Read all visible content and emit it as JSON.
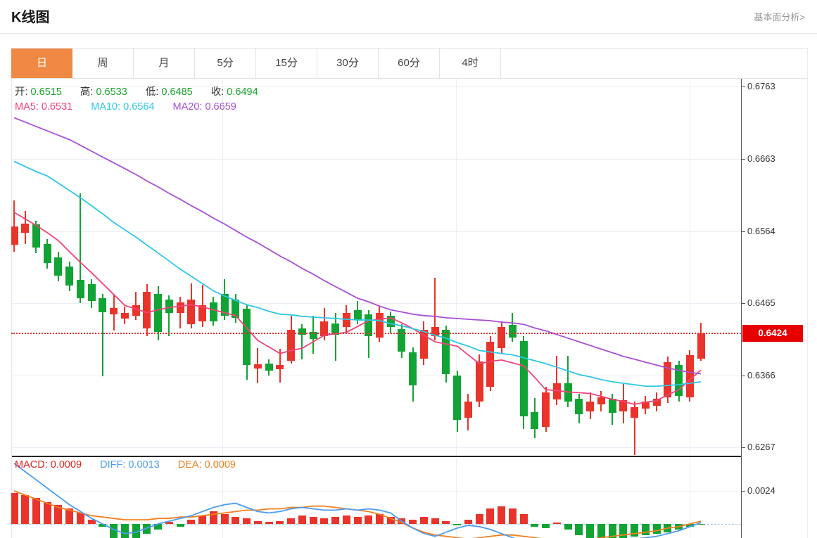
{
  "header": {
    "title": "K线图",
    "link_label": "基本面分析>"
  },
  "tabs": {
    "items": [
      "日",
      "周",
      "月",
      "5分",
      "15分",
      "30分",
      "60分",
      "4时"
    ],
    "active_index": 0
  },
  "legend": {
    "kline": {
      "o_label": "开:",
      "o": "0.6515",
      "h_label": "高:",
      "h": "0.6533",
      "l_label": "低:",
      "l": "0.6485",
      "c_label": "收:",
      "c": "0.6494"
    },
    "ma": {
      "ma5_label": "MA5:",
      "ma5": "0.6531",
      "ma10_label": "MA10:",
      "ma10": "0.6564",
      "ma20_label": "MA20:",
      "ma20": "0.6659"
    },
    "macd": {
      "macd_label": "MACD:",
      "macd": "0.0009",
      "diff_label": "DIFF:",
      "diff": "0.0013",
      "dea_label": "DEA:",
      "dea": "0.0009"
    }
  },
  "price_axis": {
    "ticks": [
      "0.6763",
      "0.6663",
      "0.6564",
      "0.6465",
      "0.6366",
      "0.6267"
    ],
    "current_price": "0.6424"
  },
  "macd_axis": {
    "ticks": [
      "0.0024"
    ]
  },
  "colors": {
    "up": "#e8342a",
    "down": "#12a335",
    "ma5": "#f0437c",
    "ma10": "#2dc7e6",
    "ma20": "#a94fd6",
    "diff": "#4a9cf0",
    "dea": "#f07f1e",
    "ohlc_value": "#18a22c",
    "alert_red": "#e60000",
    "active_tab": "#f08943",
    "macd_legend": "#e62222"
  },
  "chart_data": [
    {
      "type": "candlestick",
      "title": "K线图",
      "ylim": [
        0.62554,
        0.67736
      ],
      "yticks": [
        0.6763,
        0.6663,
        0.6564,
        0.6465,
        0.6366,
        0.6267
      ],
      "current_price": 0.6424,
      "ohlc_legend": {
        "open": 0.6515,
        "high": 0.6533,
        "low": 0.6485,
        "close": 0.6494
      },
      "ma_legend": {
        "ma5": 0.6531,
        "ma10": 0.6564,
        "ma20": 0.6659
      },
      "candles": [
        [
          0.6545,
          0.6571,
          0.6536,
          0.6606
        ],
        [
          0.6562,
          0.6574,
          0.6546,
          0.6592
        ],
        [
          0.6573,
          0.6542,
          0.6534,
          0.6578
        ],
        [
          0.6546,
          0.652,
          0.6513,
          0.6553
        ],
        [
          0.6528,
          0.6503,
          0.6495,
          0.6536
        ],
        [
          0.6515,
          0.6489,
          0.6482,
          0.6522
        ],
        [
          0.6497,
          0.6472,
          0.6465,
          0.6616
        ],
        [
          0.6491,
          0.6468,
          0.6458,
          0.6498
        ],
        [
          0.6472,
          0.6453,
          0.6365,
          0.6478
        ],
        [
          0.645,
          0.6458,
          0.6427,
          0.6476
        ],
        [
          0.6444,
          0.6452,
          0.6436,
          0.646
        ],
        [
          0.6448,
          0.6462,
          0.6442,
          0.6481
        ],
        [
          0.643,
          0.6481,
          0.642,
          0.6491
        ],
        [
          0.6478,
          0.6426,
          0.6414,
          0.6488
        ],
        [
          0.647,
          0.6452,
          0.642,
          0.6476
        ],
        [
          0.6452,
          0.6466,
          0.643,
          0.6474
        ],
        [
          0.6436,
          0.647,
          0.643,
          0.6492
        ],
        [
          0.644,
          0.6462,
          0.6432,
          0.649
        ],
        [
          0.6466,
          0.644,
          0.6434,
          0.6474
        ],
        [
          0.6478,
          0.6448,
          0.6442,
          0.6498
        ],
        [
          0.647,
          0.6445,
          0.6438,
          0.6478
        ],
        [
          0.6457,
          0.638,
          0.636,
          0.6462
        ],
        [
          0.6375,
          0.6381,
          0.6355,
          0.6403
        ],
        [
          0.6382,
          0.6372,
          0.6366,
          0.6388
        ],
        [
          0.6374,
          0.638,
          0.6356,
          0.6402
        ],
        [
          0.6386,
          0.6428,
          0.6382,
          0.6448
        ],
        [
          0.643,
          0.6422,
          0.6388,
          0.6436
        ],
        [
          0.6426,
          0.6416,
          0.6396,
          0.6448
        ],
        [
          0.642,
          0.644,
          0.6414,
          0.6458
        ],
        [
          0.6437,
          0.6422,
          0.6386,
          0.6452
        ],
        [
          0.6432,
          0.6452,
          0.6426,
          0.6462
        ],
        [
          0.6456,
          0.6442,
          0.6436,
          0.6468
        ],
        [
          0.645,
          0.642,
          0.639,
          0.6456
        ],
        [
          0.6418,
          0.6452,
          0.6412,
          0.646
        ],
        [
          0.6448,
          0.6432,
          0.6424,
          0.6454
        ],
        [
          0.6429,
          0.6398,
          0.639,
          0.6436
        ],
        [
          0.6398,
          0.6352,
          0.633,
          0.6404
        ],
        [
          0.6389,
          0.6428,
          0.638,
          0.644
        ],
        [
          0.642,
          0.6432,
          0.6414,
          0.65
        ],
        [
          0.6428,
          0.6368,
          0.6356,
          0.6434
        ],
        [
          0.6366,
          0.6305,
          0.6288,
          0.6372
        ],
        [
          0.6308,
          0.633,
          0.629,
          0.634
        ],
        [
          0.633,
          0.6385,
          0.6322,
          0.6395
        ],
        [
          0.635,
          0.6412,
          0.6344,
          0.642
        ],
        [
          0.6403,
          0.6432,
          0.6396,
          0.644
        ],
        [
          0.6435,
          0.6418,
          0.6412,
          0.6452
        ],
        [
          0.6413,
          0.631,
          0.6292,
          0.642
        ],
        [
          0.6315,
          0.6292,
          0.628,
          0.6335
        ],
        [
          0.6295,
          0.6342,
          0.6288,
          0.635
        ],
        [
          0.6333,
          0.6355,
          0.6325,
          0.6393
        ],
        [
          0.6355,
          0.633,
          0.6322,
          0.6393
        ],
        [
          0.6334,
          0.6312,
          0.63,
          0.634
        ],
        [
          0.6316,
          0.633,
          0.6306,
          0.6342
        ],
        [
          0.6326,
          0.6336,
          0.6316,
          0.6344
        ],
        [
          0.6334,
          0.6314,
          0.6298,
          0.634
        ],
        [
          0.6316,
          0.6332,
          0.63,
          0.6354
        ],
        [
          0.6308,
          0.6322,
          0.6256,
          0.633
        ],
        [
          0.632,
          0.633,
          0.6312,
          0.6338
        ],
        [
          0.6324,
          0.6334,
          0.6316,
          0.6342
        ],
        [
          0.6336,
          0.6384,
          0.6328,
          0.6392
        ],
        [
          0.638,
          0.6338,
          0.633,
          0.6386
        ],
        [
          0.6336,
          0.6394,
          0.633,
          0.64
        ],
        [
          0.6389,
          0.6424,
          0.6386,
          0.6438
        ]
      ],
      "ma5": [
        0.659,
        0.6581,
        0.6572,
        0.6562,
        0.6551,
        0.6536,
        0.6521,
        0.6507,
        0.6492,
        0.6477,
        0.6462,
        0.6457,
        0.6452,
        0.6456,
        0.6459,
        0.6461,
        0.6463,
        0.646,
        0.6456,
        0.6452,
        0.6448,
        0.6431,
        0.6414,
        0.6405,
        0.6396,
        0.64,
        0.6403,
        0.6412,
        0.6421,
        0.6423,
        0.6425,
        0.6433,
        0.6441,
        0.6443,
        0.6445,
        0.6438,
        0.643,
        0.6421,
        0.6412,
        0.6409,
        0.6406,
        0.6394,
        0.6382,
        0.6385,
        0.6387,
        0.6383,
        0.6379,
        0.6363,
        0.6346,
        0.6345,
        0.6343,
        0.6342,
        0.6341,
        0.6337,
        0.6333,
        0.633,
        0.6326,
        0.6329,
        0.6331,
        0.6339,
        0.6346,
        0.636,
        0.6373
      ],
      "ma10": [
        0.666,
        0.6653,
        0.6646,
        0.664,
        0.663,
        0.662,
        0.661,
        0.6599,
        0.6588,
        0.6576,
        0.6566,
        0.6556,
        0.6545,
        0.6534,
        0.6523,
        0.6512,
        0.6502,
        0.6492,
        0.6482,
        0.6475,
        0.6469,
        0.6463,
        0.6459,
        0.6454,
        0.645,
        0.6449,
        0.6447,
        0.6446,
        0.6445,
        0.6444,
        0.6443,
        0.6442,
        0.6442,
        0.6441,
        0.6437,
        0.6434,
        0.643,
        0.6426,
        0.6421,
        0.6417,
        0.6411,
        0.6406,
        0.64,
        0.6398,
        0.6396,
        0.6394,
        0.639,
        0.6386,
        0.6382,
        0.6377,
        0.6372,
        0.6367,
        0.6364,
        0.636,
        0.6357,
        0.6355,
        0.6353,
        0.6351,
        0.6351,
        0.6352,
        0.6353,
        0.6355,
        0.6357
      ],
      "ma20": [
        0.672,
        0.6714,
        0.6708,
        0.6702,
        0.6696,
        0.669,
        0.6682,
        0.6674,
        0.6666,
        0.6658,
        0.665,
        0.6642,
        0.6633,
        0.6625,
        0.6616,
        0.6608,
        0.6599,
        0.6591,
        0.6582,
        0.6574,
        0.6565,
        0.6556,
        0.6548,
        0.6539,
        0.653,
        0.6522,
        0.6513,
        0.6505,
        0.6496,
        0.6488,
        0.648,
        0.6472,
        0.6467,
        0.6461,
        0.6456,
        0.6453,
        0.645,
        0.6448,
        0.6447,
        0.6445,
        0.6444,
        0.6443,
        0.6442,
        0.6441,
        0.6439,
        0.6438,
        0.6436,
        0.6431,
        0.6427,
        0.6422,
        0.6417,
        0.6412,
        0.6407,
        0.6402,
        0.6397,
        0.6392,
        0.6388,
        0.6384,
        0.638,
        0.6376,
        0.6373,
        0.637,
        0.6368
      ]
    },
    {
      "type": "macd",
      "ylim": [
        -0.00102,
        0.0048
      ],
      "yticks": [
        0.0024
      ],
      "legend": {
        "macd": 0.0009,
        "diff": 0.0013,
        "dea": 0.0009
      },
      "hist": [
        0.00225,
        0.0021,
        0.0019,
        0.0016,
        0.0014,
        0.0011,
        0.0008,
        0.0003,
        -0.0002,
        -0.001,
        -0.0013,
        -0.0011,
        -0.0007,
        -0.0004,
        0.00015,
        -0.0002,
        0.0003,
        0.0006,
        0.0009,
        0.0007,
        0.0005,
        0.0004,
        0.0002,
        0.00015,
        0.0002,
        0.0004,
        0.0006,
        0.0005,
        0.0004,
        0.0005,
        0.0006,
        0.0005,
        0.0006,
        0.0007,
        0.0005,
        0.0004,
        0.0003,
        0.0005,
        0.0004,
        0.0002,
        -0.0001,
        0.0003,
        0.0007,
        0.0011,
        0.0013,
        0.0011,
        0.0007,
        -0.0002,
        -0.0003,
        0.0001,
        -0.0004,
        -0.0008,
        -0.001,
        -0.001,
        -0.001,
        -0.001,
        -0.0009,
        -0.0008,
        -0.0007,
        -0.0006,
        -0.0004,
        -0.0002,
        -5e-05
      ],
      "diff": [
        0.0044,
        0.0038,
        0.0032,
        0.0026,
        0.002,
        0.0014,
        0.0009,
        0.0004,
        0.0,
        -0.0004,
        -0.0007,
        -0.0006,
        -0.0003,
        0.0,
        0.0002,
        0.0004,
        0.0006,
        0.0009,
        0.0012,
        0.0014,
        0.0015,
        0.0012,
        0.0009,
        0.0008,
        0.0009,
        0.0011,
        0.0012,
        0.0011,
        0.001,
        0.001,
        0.0011,
        0.001,
        0.0011,
        0.001,
        0.0008,
        0.0002,
        -0.0003,
        -0.0007,
        -0.0009,
        -0.0006,
        -0.0003,
        -0.0001,
        -0.0002,
        -0.0004,
        -0.0007,
        -0.001,
        -0.0013,
        -0.0014,
        -0.0013,
        -0.0012,
        -0.0012,
        -0.0013,
        -0.0013,
        -0.0013,
        -0.0013,
        -0.0012,
        -0.0011,
        -0.001,
        -0.0009,
        -0.0007,
        -0.0005,
        -0.0002,
        0.0001
      ],
      "dea": [
        0.0024,
        0.0021,
        0.0018,
        0.0015,
        0.0012,
        0.001,
        0.0008,
        0.0006,
        0.0005,
        0.0004,
        0.0003,
        0.0003,
        0.0003,
        0.0004,
        0.0004,
        0.0005,
        0.0005,
        0.0006,
        0.0007,
        0.0008,
        0.0009,
        0.001,
        0.001,
        0.0011,
        0.0011,
        0.0012,
        0.0012,
        0.0013,
        0.0013,
        0.0012,
        0.0011,
        0.001,
        0.0009,
        0.0007,
        0.0004,
        0.0001,
        -0.0003,
        -0.0006,
        -0.0008,
        -0.0009,
        -0.001,
        -0.0011,
        -0.001,
        -0.0009,
        -0.0008,
        -0.0008,
        -0.0009,
        -0.001,
        -0.0011,
        -0.0012,
        -0.0012,
        -0.0012,
        -0.0011,
        -0.001,
        -0.0009,
        -0.0008,
        -0.0007,
        -0.0006,
        -0.0005,
        -0.0003,
        -0.0002,
        0.0,
        0.0002
      ]
    }
  ]
}
